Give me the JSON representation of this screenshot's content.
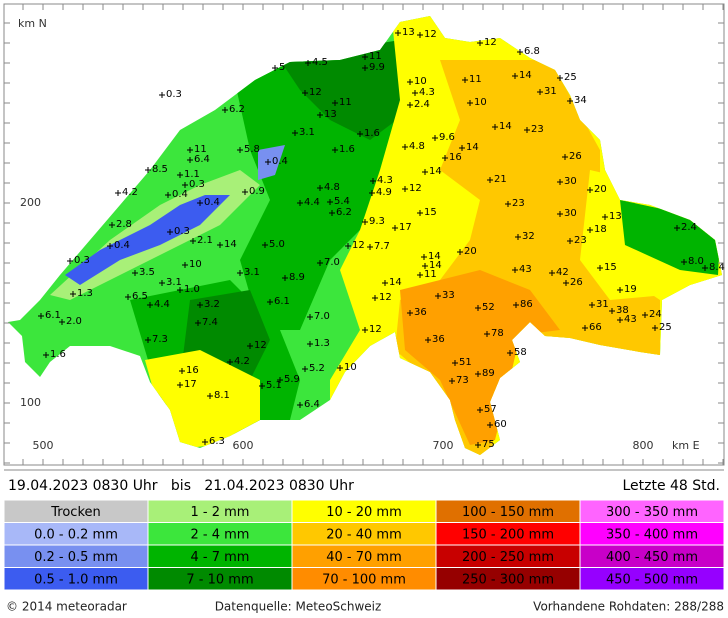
{
  "map": {
    "y_axis_label": "km N",
    "x_axis_label": "km E",
    "y_ticks": [
      "200",
      "100"
    ],
    "x_ticks": [
      "500",
      "600",
      "700",
      "800"
    ],
    "stations": [
      "13",
      "12",
      "12",
      "6.8",
      "11",
      "9.9",
      "4.5",
      "5",
      "0.3",
      "10",
      "11",
      "14",
      "25",
      "4.3",
      "2.4",
      "12",
      "31",
      "34",
      "10",
      "11",
      "13",
      "6.2",
      "14",
      "23",
      "3.1",
      "1.6",
      "9.6",
      "14",
      "4.8",
      "1.6",
      "5.8",
      "11",
      "6.4",
      "16",
      "26",
      "0.4",
      "8.5",
      "1.1",
      "0.3",
      "14",
      "21",
      "4.3",
      "30",
      "20",
      "4.2",
      "0.4",
      "0.9",
      "4.8",
      "12",
      "4.9",
      "0.4",
      "4.4",
      "5.4",
      "6.2",
      "23",
      "15",
      "30",
      "13",
      "2.8",
      "9.3",
      "17",
      "18",
      "0.3",
      "2.4",
      "32",
      "2.1",
      "14",
      "23",
      "0.4",
      "5.0",
      "12",
      "7.7",
      "20",
      "0.3",
      "14",
      "14",
      "8.0",
      "8.4",
      "10",
      "7.0",
      "11",
      "15",
      "3.5",
      "3.1",
      "43",
      "42",
      "3.1",
      "26",
      "8.9",
      "14",
      "1.3",
      "6.5",
      "1.0",
      "12",
      "33",
      "19",
      "6.1",
      "4.4",
      "3.2",
      "52",
      "86",
      "31",
      "36",
      "38",
      "43",
      "24",
      "6.1",
      "2.0",
      "7.0",
      "7.4",
      "25",
      "66",
      "12",
      "78",
      "7.3",
      "12",
      "1.3",
      "36",
      "58",
      "1.6",
      "4.2",
      "51",
      "10",
      "16",
      "5.2",
      "73",
      "89",
      "5.9",
      "17",
      "5.1",
      "8.1",
      "6.4",
      "57",
      "60",
      "6.3",
      "75"
    ]
  },
  "header": {
    "period": "19.04.2023 0830 Uhr   bis   21.04.2023 0830 Uhr",
    "window": "Letzte 48 Std."
  },
  "legend": {
    "items": [
      {
        "label": "Trocken",
        "color": "#c8c8c8"
      },
      {
        "label": "0.0 - 0.2 mm",
        "color": "#a8b8f8"
      },
      {
        "label": "0.2 - 0.5 mm",
        "color": "#7890f0"
      },
      {
        "label": "0.5 - 1.0 mm",
        "color": "#3c5cf0"
      },
      {
        "label": "1 - 2 mm",
        "color": "#a8f078"
      },
      {
        "label": "2 - 4 mm",
        "color": "#3ce63c"
      },
      {
        "label": "4 - 7 mm",
        "color": "#00b400"
      },
      {
        "label": "7 - 10 mm",
        "color": "#008a00"
      },
      {
        "label": "10 - 20 mm",
        "color": "#ffff00"
      },
      {
        "label": "20 - 40 mm",
        "color": "#ffc800"
      },
      {
        "label": "40 - 70 mm",
        "color": "#ffa000"
      },
      {
        "label": "70 - 100 mm",
        "color": "#ff8c00"
      },
      {
        "label": "100 - 150 mm",
        "color": "#e07000"
      },
      {
        "label": "150 - 200 mm",
        "color": "#ff0000"
      },
      {
        "label": "200 - 250 mm",
        "color": "#c80000"
      },
      {
        "label": "250 - 300 mm",
        "color": "#960000"
      },
      {
        "label": "300 - 350 mm",
        "color": "#ff64ff"
      },
      {
        "label": "350 - 400 mm",
        "color": "#ff00ff"
      },
      {
        "label": "400 - 450 mm",
        "color": "#c800c8"
      },
      {
        "label": "450 - 500 mm",
        "color": "#9600ff"
      }
    ]
  },
  "footer": {
    "copyright": "© 2014 meteoradar",
    "source": "Datenquelle: MeteoSchweiz",
    "raw_data": "Vorhandene Rohdaten: 288/288"
  }
}
